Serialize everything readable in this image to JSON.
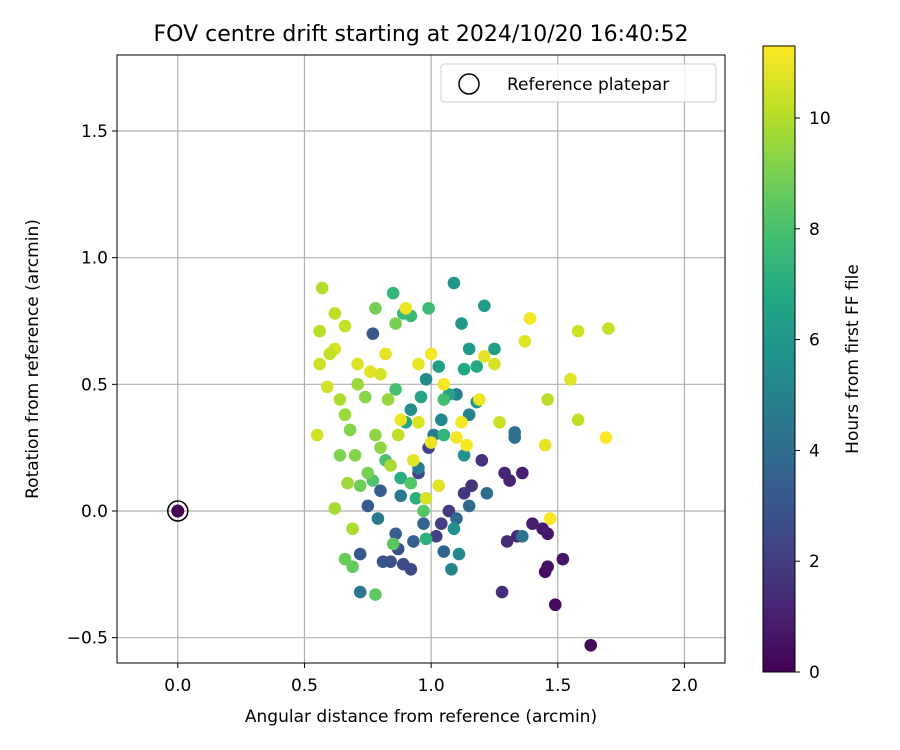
{
  "chart_data": {
    "type": "scatter",
    "title": "FOV centre drift starting at 2024/10/20 16:40:52",
    "xlabel": "Angular distance from reference (arcmin)",
    "ylabel": "Rotation from reference (arcmin)",
    "xlim": [
      -0.24,
      2.16
    ],
    "ylim": [
      -0.6,
      1.8
    ],
    "xticks": [
      0.0,
      0.5,
      1.0,
      1.5,
      2.0
    ],
    "xtick_labels": [
      "0.0",
      "0.5",
      "1.0",
      "1.5",
      "2.0"
    ],
    "yticks": [
      -0.5,
      0.0,
      0.5,
      1.0,
      1.5
    ],
    "ytick_labels": [
      "−0.5",
      "0.0",
      "0.5",
      "1.0",
      "1.5"
    ],
    "grid": true,
    "legend": {
      "position": "top-right",
      "entries": [
        "Reference platepar"
      ]
    },
    "reference_point": {
      "x": 0.0,
      "y": 0.0,
      "hours": 0
    },
    "colorbar": {
      "label": "Hours from first FF file",
      "colormap": "viridis",
      "range": [
        0,
        11.3
      ],
      "ticks": [
        0,
        2,
        4,
        6,
        8,
        10
      ],
      "tick_labels": [
        "0",
        "2",
        "4",
        "6",
        "8",
        "10"
      ]
    },
    "points": [
      [
        1.63,
        -0.53,
        0.2
      ],
      [
        1.49,
        -0.37,
        0.3
      ],
      [
        1.45,
        -0.24,
        0.4
      ],
      [
        1.46,
        -0.22,
        0.5
      ],
      [
        1.52,
        -0.19,
        0.6
      ],
      [
        1.46,
        -0.09,
        0.7
      ],
      [
        1.44,
        -0.07,
        0.8
      ],
      [
        1.4,
        -0.05,
        0.9
      ],
      [
        1.36,
        0.15,
        1.0
      ],
      [
        1.31,
        0.12,
        1.1
      ],
      [
        1.29,
        0.15,
        1.2
      ],
      [
        1.34,
        -0.1,
        1.3
      ],
      [
        1.3,
        -0.12,
        1.4
      ],
      [
        1.28,
        -0.32,
        1.5
      ],
      [
        1.2,
        0.2,
        1.6
      ],
      [
        1.16,
        0.1,
        1.7
      ],
      [
        1.13,
        0.07,
        1.8
      ],
      [
        1.07,
        0.0,
        1.9
      ],
      [
        1.04,
        -0.05,
        2.0
      ],
      [
        1.02,
        -0.1,
        2.1
      ],
      [
        0.99,
        0.25,
        2.2
      ],
      [
        0.95,
        0.15,
        2.3
      ],
      [
        0.92,
        -0.23,
        2.5
      ],
      [
        0.89,
        -0.21,
        2.6
      ],
      [
        0.87,
        -0.15,
        2.7
      ],
      [
        0.84,
        -0.2,
        2.8
      ],
      [
        0.81,
        -0.2,
        2.9
      ],
      [
        0.77,
        0.7,
        3.0
      ],
      [
        0.72,
        -0.17,
        3.1
      ],
      [
        0.75,
        0.02,
        3.2
      ],
      [
        0.8,
        0.08,
        3.3
      ],
      [
        0.86,
        -0.09,
        3.4
      ],
      [
        0.93,
        -0.12,
        3.5
      ],
      [
        0.97,
        -0.05,
        3.6
      ],
      [
        1.05,
        -0.16,
        3.7
      ],
      [
        1.1,
        -0.03,
        3.8
      ],
      [
        1.15,
        0.02,
        3.9
      ],
      [
        1.22,
        0.07,
        4.0
      ],
      [
        1.33,
        0.29,
        4.1
      ],
      [
        1.33,
        0.31,
        4.2
      ],
      [
        1.36,
        -0.1,
        4.3
      ],
      [
        0.72,
        -0.32,
        4.4
      ],
      [
        0.79,
        -0.03,
        4.5
      ],
      [
        0.88,
        0.06,
        4.6
      ],
      [
        0.95,
        0.17,
        4.7
      ],
      [
        1.01,
        0.3,
        4.8
      ],
      [
        1.1,
        0.46,
        4.9
      ],
      [
        1.15,
        0.38,
        5.0
      ],
      [
        1.08,
        -0.23,
        5.1
      ],
      [
        1.11,
        -0.17,
        5.2
      ],
      [
        1.04,
        0.36,
        5.3
      ],
      [
        0.98,
        0.52,
        5.4
      ],
      [
        0.92,
        0.4,
        5.5
      ],
      [
        1.09,
        -0.07,
        5.6
      ],
      [
        1.13,
        0.22,
        5.7
      ],
      [
        1.18,
        0.43,
        5.8
      ],
      [
        1.09,
        0.9,
        5.9
      ],
      [
        1.12,
        0.74,
        6.0
      ],
      [
        1.15,
        0.64,
        6.1
      ],
      [
        1.21,
        0.81,
        6.2
      ],
      [
        1.25,
        0.64,
        6.3
      ],
      [
        1.03,
        0.57,
        6.4
      ],
      [
        1.07,
        0.46,
        6.5
      ],
      [
        0.96,
        0.45,
        6.6
      ],
      [
        0.9,
        0.35,
        6.7
      ],
      [
        1.13,
        0.56,
        6.8
      ],
      [
        1.18,
        0.57,
        6.9
      ],
      [
        0.88,
        0.13,
        7.0
      ],
      [
        0.94,
        0.05,
        7.1
      ],
      [
        0.98,
        -0.11,
        7.2
      ],
      [
        1.05,
        0.3,
        7.3
      ],
      [
        0.85,
        0.86,
        7.4
      ],
      [
        0.89,
        0.78,
        7.5
      ],
      [
        0.92,
        0.77,
        7.6
      ],
      [
        0.99,
        0.8,
        7.7
      ],
      [
        1.05,
        0.44,
        7.8
      ],
      [
        0.86,
        0.48,
        7.9
      ],
      [
        0.82,
        0.2,
        8.0
      ],
      [
        0.77,
        0.12,
        8.1
      ],
      [
        0.92,
        0.11,
        8.2
      ],
      [
        0.97,
        0.0,
        8.3
      ],
      [
        0.85,
        -0.13,
        8.4
      ],
      [
        0.78,
        -0.33,
        8.5
      ],
      [
        0.69,
        -0.22,
        8.6
      ],
      [
        0.66,
        -0.19,
        8.7
      ],
      [
        0.72,
        0.1,
        8.8
      ],
      [
        0.78,
        0.8,
        8.9
      ],
      [
        0.86,
        0.74,
        9.0
      ],
      [
        0.64,
        0.22,
        9.1
      ],
      [
        0.68,
        0.32,
        9.2
      ],
      [
        0.74,
        0.45,
        9.3
      ],
      [
        0.78,
        0.3,
        9.4
      ],
      [
        0.83,
        0.44,
        9.5
      ],
      [
        0.71,
        0.5,
        9.6
      ],
      [
        0.67,
        0.11,
        9.7
      ],
      [
        0.62,
        0.01,
        9.8
      ],
      [
        0.69,
        -0.07,
        9.9
      ],
      [
        0.57,
        0.88,
        10.0
      ],
      [
        0.56,
        0.71,
        10.1
      ],
      [
        0.62,
        0.78,
        10.2
      ],
      [
        0.66,
        0.73,
        10.3
      ],
      [
        0.56,
        0.58,
        10.4
      ],
      [
        0.59,
        0.49,
        10.5
      ],
      [
        0.62,
        0.64,
        10.6
      ],
      [
        0.71,
        0.58,
        10.7
      ],
      [
        0.76,
        0.55,
        10.8
      ],
      [
        0.82,
        0.62,
        10.9
      ],
      [
        0.9,
        0.8,
        11.0
      ],
      [
        0.55,
        0.3,
        10.5
      ],
      [
        0.6,
        0.62,
        10.3
      ],
      [
        0.8,
        0.54,
        10.6
      ],
      [
        0.95,
        0.58,
        10.9
      ],
      [
        1.0,
        0.62,
        11.1
      ],
      [
        1.05,
        0.5,
        11.2
      ],
      [
        1.12,
        0.35,
        11.1
      ],
      [
        1.19,
        0.44,
        11.0
      ],
      [
        1.21,
        0.61,
        10.8
      ],
      [
        1.25,
        0.58,
        10.6
      ],
      [
        1.27,
        0.35,
        10.4
      ],
      [
        1.37,
        0.67,
        10.8
      ],
      [
        1.39,
        0.76,
        11.2
      ],
      [
        1.45,
        0.26,
        10.9
      ],
      [
        1.46,
        0.44,
        10.1
      ],
      [
        1.47,
        -0.03,
        11.3
      ],
      [
        1.55,
        0.52,
        10.8
      ],
      [
        1.58,
        0.36,
        10.2
      ],
      [
        1.58,
        0.71,
        10.4
      ],
      [
        1.69,
        0.29,
        11.3
      ],
      [
        1.7,
        0.72,
        10.3
      ],
      [
        0.95,
        0.35,
        10.7
      ],
      [
        1.0,
        0.27,
        10.9
      ],
      [
        1.1,
        0.29,
        11.1
      ],
      [
        1.14,
        0.26,
        11.2
      ],
      [
        1.03,
        0.1,
        10.8
      ],
      [
        0.98,
        0.05,
        10.6
      ],
      [
        0.93,
        0.2,
        10.8
      ],
      [
        0.88,
        0.36,
        11.0
      ],
      [
        0.87,
        0.3,
        10.2
      ],
      [
        0.84,
        0.18,
        9.8
      ],
      [
        0.8,
        0.25,
        9.4
      ],
      [
        0.75,
        0.15,
        9.0
      ],
      [
        0.7,
        0.22,
        9.2
      ],
      [
        0.66,
        0.38,
        9.6
      ],
      [
        0.64,
        0.44,
        9.9
      ]
    ]
  }
}
